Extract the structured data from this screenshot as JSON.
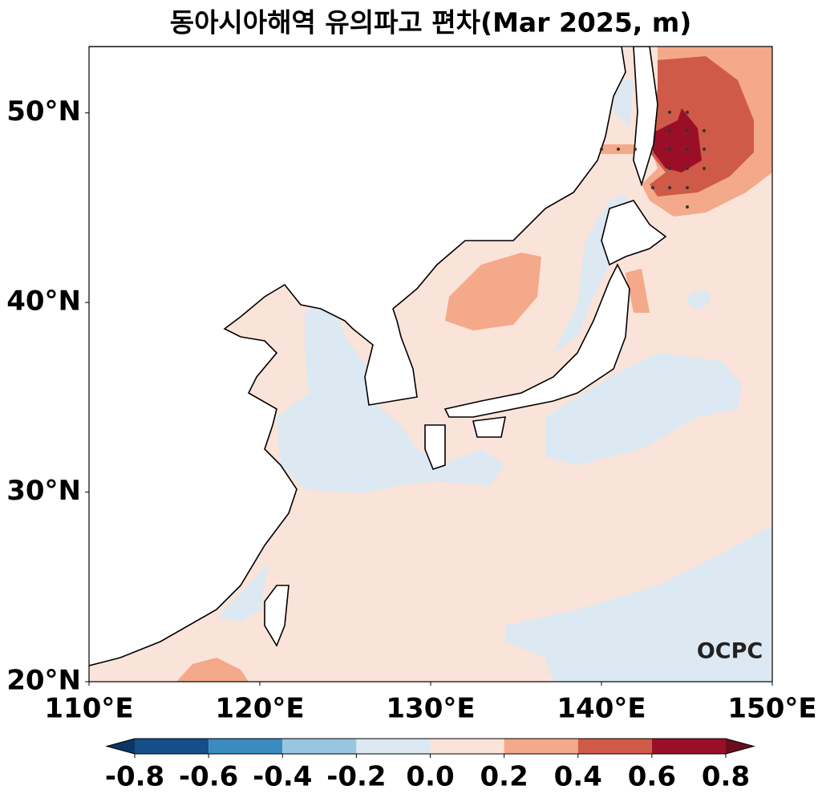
{
  "chart_data": {
    "type": "contour-map",
    "title": "동아시아해역 유의파고 편차(Mar 2025, m)",
    "xlim": [
      110,
      150
    ],
    "ylim": [
      20,
      53.5
    ],
    "xticks": [
      {
        "value": 110,
        "label": "110°E"
      },
      {
        "value": 120,
        "label": "120°E"
      },
      {
        "value": 130,
        "label": "130°E"
      },
      {
        "value": 140,
        "label": "140°E"
      },
      {
        "value": 150,
        "label": "150°E"
      }
    ],
    "yticks": [
      {
        "value": 20,
        "label": "20°N"
      },
      {
        "value": 30,
        "label": "30°N"
      },
      {
        "value": 40,
        "label": "40°N"
      },
      {
        "value": 50,
        "label": "50°N"
      }
    ],
    "colorbar": {
      "levels": [
        -0.8,
        -0.6,
        -0.4,
        -0.2,
        {
          "value": 0,
          "label": "0.0"
        },
        0.2,
        0.4,
        0.6,
        0.8
      ],
      "colors": [
        "#0c3566",
        "#154f8a",
        "#3a8bc2",
        "#97c7e0",
        "#dce9f2",
        "#fae3d8",
        "#f3a98a",
        "#d05a48",
        "#9a0f27",
        "#6b0c21"
      ]
    },
    "logo": "OCPC"
  }
}
